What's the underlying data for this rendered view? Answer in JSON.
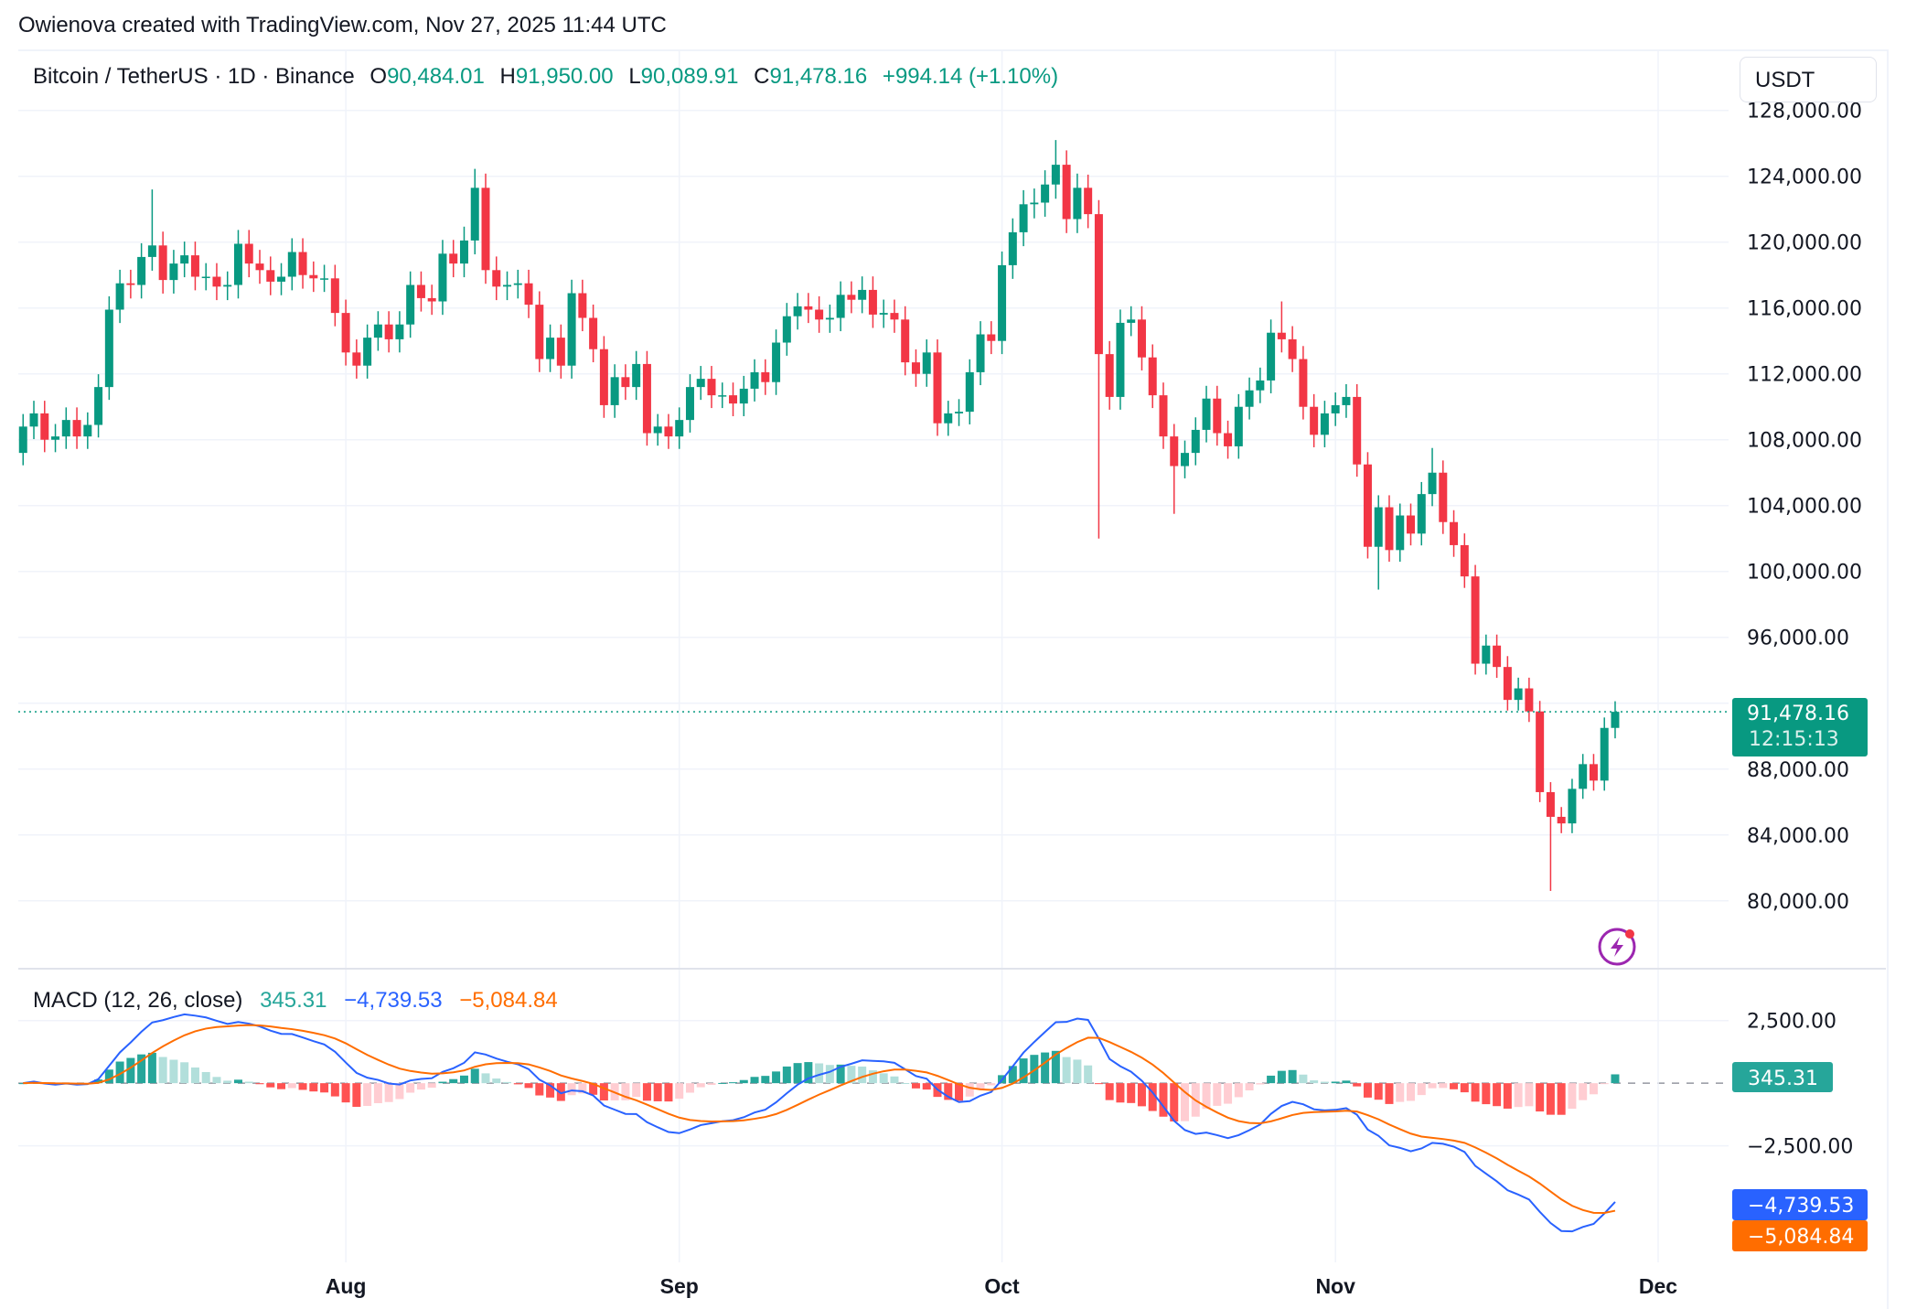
{
  "attribution": "Owienova created with TradingView.com, Nov 27, 2025 11:44 UTC",
  "legend": {
    "symbol": "Bitcoin / TetherUS · 1D · Binance",
    "open_label": "O",
    "open": "90,484.01",
    "high_label": "H",
    "high": "91,950.00",
    "low_label": "L",
    "low": "90,089.91",
    "close_label": "C",
    "close": "91,478.16",
    "change": "+994.14 (+1.10%)"
  },
  "currency_button": "USDT",
  "price_tag": {
    "price": "91,478.16",
    "countdown": "12:15:13"
  },
  "macd_legend": {
    "title": "MACD (12, 26, close)",
    "histogram": "345.31",
    "macd": "−4,739.53",
    "signal": "−5,084.84"
  },
  "macd_tags": {
    "histogram": "345.31",
    "macd": "−4,739.53",
    "signal": "−5,084.84"
  },
  "colors": {
    "up": "#089981",
    "down": "#F23645",
    "macd": "#2962FF",
    "signal": "#FF6D00",
    "hist_up_strong": "#26A69A",
    "hist_up_weak": "#B2DFDB",
    "hist_down_strong": "#FF5252",
    "hist_down_weak": "#FFCDD2"
  },
  "chart_data": [
    {
      "type": "candlestick",
      "title": "Bitcoin / TetherUS · 1D · Binance",
      "x_start": "2025-07-02",
      "x_end": "2025-11-27",
      "x_ticks": [
        {
          "label": "Aug",
          "day_index": 30
        },
        {
          "label": "Sep",
          "day_index": 61
        },
        {
          "label": "Oct",
          "day_index": 91
        },
        {
          "label": "Nov",
          "day_index": 122
        },
        {
          "label": "Dec",
          "day_index": 152
        }
      ],
      "y_ticks": [
        "128,000.00",
        "124,000.00",
        "120,000.00",
        "116,000.00",
        "112,000.00",
        "108,000.00",
        "104,000.00",
        "100,000.00",
        "96,000.00",
        "92,000.00",
        "88,000.00",
        "84,000.00",
        "80,000.00"
      ],
      "y_tick_values": [
        128000,
        124000,
        120000,
        116000,
        112000,
        108000,
        104000,
        100000,
        96000,
        92000,
        88000,
        84000,
        80000
      ],
      "ylim": [
        76000,
        128500
      ],
      "first_open": 107200,
      "closes": [
        108800,
        109600,
        108000,
        108200,
        109200,
        108200,
        108900,
        111200,
        115900,
        117500,
        117400,
        119100,
        119800,
        117700,
        118700,
        119200,
        117900,
        117900,
        117300,
        117400,
        119900,
        118700,
        118300,
        117600,
        117900,
        119400,
        118000,
        117800,
        117800,
        115700,
        113300,
        112500,
        114200,
        115000,
        114100,
        115000,
        117400,
        116600,
        116400,
        119300,
        118700,
        120100,
        123300,
        118300,
        117300,
        117400,
        117500,
        116200,
        112900,
        114200,
        112500,
        116900,
        115400,
        113500,
        110100,
        111800,
        111200,
        112600,
        108400,
        108800,
        108200,
        109200,
        111200,
        111700,
        110700,
        110700,
        110200,
        111100,
        112100,
        111500,
        113900,
        115500,
        116100,
        115900,
        115300,
        115400,
        116800,
        116500,
        117100,
        115600,
        115700,
        115300,
        112700,
        112000,
        113300,
        109000,
        109600,
        109700,
        112100,
        114400,
        114000,
        118600,
        120600,
        122300,
        122400,
        123500,
        124700,
        121400,
        123300,
        121700,
        113200,
        110600,
        115100,
        115300,
        113000,
        110700,
        108200,
        106400,
        107200,
        108600,
        110500,
        108400,
        107600,
        110000,
        111000,
        111600,
        114500,
        114100,
        112900,
        110000,
        108300,
        109600,
        110100,
        110600,
        106500,
        101500,
        103900,
        101300,
        103400,
        102300,
        104700,
        106000,
        103000,
        101600,
        99700,
        94400,
        95500,
        94200,
        92200,
        92900,
        91500,
        86600,
        85100,
        84700,
        86800,
        88300,
        87300,
        90500,
        91478.16
      ],
      "notable_highs": {
        "12": 123200,
        "42": 124450,
        "96": 126200,
        "99": 124100,
        "117": 116400,
        "131": 107500
      },
      "notable_lows": {
        "100": 102000,
        "107": 103500,
        "126": 98900,
        "142": 80600
      },
      "current_price": 91478.16
    },
    {
      "type": "macd",
      "title": "MACD (12, 26, close)",
      "params": {
        "fast": 12,
        "slow": 26,
        "signal": 9
      },
      "y_ticks": [
        "2,500.00",
        "0.00",
        "−2,500.00"
      ],
      "y_tick_values": [
        2500,
        0,
        -2500
      ],
      "last": {
        "histogram": 345.31,
        "macd": -4739.53,
        "signal": -5084.84
      }
    }
  ]
}
